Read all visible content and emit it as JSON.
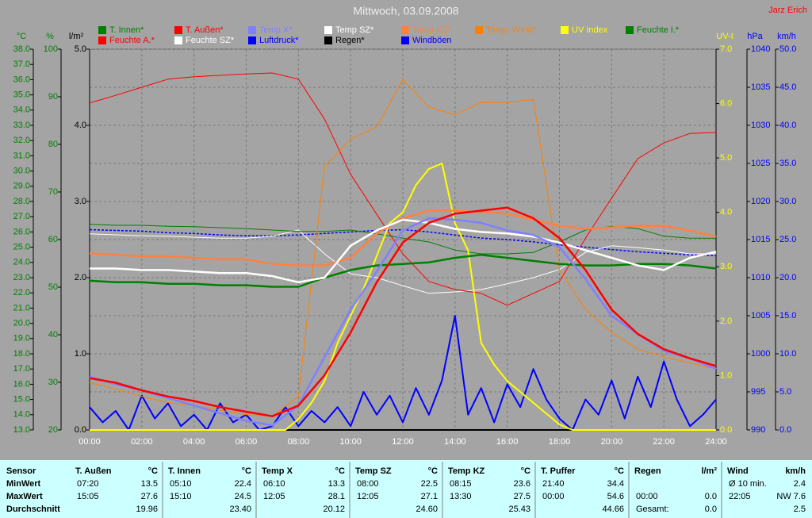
{
  "chart_data": {
    "type": "line",
    "title": "Mittwoch, 03.09.2008",
    "author": "Jarz Erich",
    "x": [
      0,
      1,
      2,
      3,
      4,
      5,
      6,
      7,
      8,
      9,
      10,
      11,
      12,
      13,
      14,
      15,
      16,
      17,
      18,
      19,
      20,
      21,
      22,
      23,
      24
    ],
    "xlim": [
      0,
      24
    ],
    "xticks": [
      {
        "value": 0,
        "label": "00:00"
      },
      {
        "value": 2,
        "label": "02:00"
      },
      {
        "value": 4,
        "label": "04:00"
      },
      {
        "value": 6,
        "label": "06:00"
      },
      {
        "value": 8,
        "label": "08:00"
      },
      {
        "value": 10,
        "label": "10:00"
      },
      {
        "value": 12,
        "label": "12:00"
      },
      {
        "value": 14,
        "label": "14:00"
      },
      {
        "value": 16,
        "label": "16:00"
      },
      {
        "value": 18,
        "label": "18:00"
      },
      {
        "value": 20,
        "label": "20:00"
      },
      {
        "value": 22,
        "label": "22:00"
      },
      {
        "value": 24,
        "label": "24:00"
      }
    ],
    "grid": true,
    "ylabel": "°C",
    "ycolor": "#008000",
    "ylim": [
      13,
      38
    ],
    "yticks": [
      {
        "value": 13,
        "label": "13.0"
      },
      {
        "value": 14,
        "label": "14.0"
      },
      {
        "value": 15,
        "label": "15.0"
      },
      {
        "value": 16,
        "label": "16.0"
      },
      {
        "value": 17,
        "label": "17.0"
      },
      {
        "value": 18,
        "label": "18.0"
      },
      {
        "value": 19,
        "label": "19.0"
      },
      {
        "value": 20,
        "label": "20.0"
      },
      {
        "value": 21,
        "label": "21.0"
      },
      {
        "value": 22,
        "label": "22.0"
      },
      {
        "value": 23,
        "label": "23.0"
      },
      {
        "value": 24,
        "label": "24.0"
      },
      {
        "value": 25,
        "label": "25.0"
      },
      {
        "value": 26,
        "label": "26.0"
      },
      {
        "value": 27,
        "label": "27.0"
      },
      {
        "value": 28,
        "label": "28.0"
      },
      {
        "value": 29,
        "label": "29.0"
      },
      {
        "value": 30,
        "label": "30.0"
      },
      {
        "value": 31,
        "label": "31.0"
      },
      {
        "value": 32,
        "label": "32.0"
      },
      {
        "value": 33,
        "label": "33.0"
      },
      {
        "value": 34,
        "label": "34.0"
      },
      {
        "value": 35,
        "label": "35.0"
      },
      {
        "value": 36,
        "label": "36.0"
      },
      {
        "value": 37,
        "label": "37.0"
      },
      {
        "value": 38,
        "label": "38.0"
      }
    ],
    "y2label": "%",
    "y2color": "#008000",
    "y2lim": [
      20,
      100
    ],
    "y2ticks": [
      20,
      30,
      40,
      50,
      60,
      70,
      80,
      90,
      100
    ],
    "y3label": "l/m²",
    "y3color": "#000000",
    "y3lim": [
      0,
      5
    ],
    "y3ticks": [
      {
        "value": 0,
        "label": "0.0"
      },
      {
        "value": 1,
        "label": "1.0"
      },
      {
        "value": 2,
        "label": "2.0"
      },
      {
        "value": 3,
        "label": "3.0"
      },
      {
        "value": 4,
        "label": "4.0"
      },
      {
        "value": 5,
        "label": "5.0"
      }
    ],
    "y4label": "UV-I",
    "y4color": "#ffff00",
    "y4lim": [
      0,
      7
    ],
    "y4ticks": [
      {
        "value": 0,
        "label": "0.0"
      },
      {
        "value": 1,
        "label": "1.0"
      },
      {
        "value": 2,
        "label": "2.0"
      },
      {
        "value": 3,
        "label": "3.0"
      },
      {
        "value": 4,
        "label": "4.0"
      },
      {
        "value": 5,
        "label": "5.0"
      },
      {
        "value": 6,
        "label": "6.0"
      },
      {
        "value": 7,
        "label": "7.0"
      }
    ],
    "y5label": "hPa",
    "y5color": "#0000ff",
    "y5lim": [
      990,
      1040
    ],
    "y5ticks": [
      990,
      995,
      1000,
      1005,
      1010,
      1015,
      1020,
      1025,
      1030,
      1035,
      1040
    ],
    "y6label": "km/h",
    "y6color": "#0000ff",
    "y6lim": [
      0,
      50
    ],
    "y6ticks": [
      {
        "value": 0,
        "label": "0.0"
      },
      {
        "value": 5,
        "label": "5.0"
      },
      {
        "value": 10,
        "label": "10.0"
      },
      {
        "value": 15,
        "label": "15.0"
      },
      {
        "value": 20,
        "label": "20.0"
      },
      {
        "value": 25,
        "label": "25.0"
      },
      {
        "value": 30,
        "label": "30.0"
      },
      {
        "value": 35,
        "label": "35.0"
      },
      {
        "value": 40,
        "label": "40.0"
      },
      {
        "value": 45,
        "label": "45.0"
      },
      {
        "value": 50,
        "label": "50.0"
      }
    ],
    "series": [
      {
        "name": "T. Innen*",
        "color": "#008000",
        "axis": "y",
        "values": [
          22.8,
          22.7,
          22.7,
          22.6,
          22.6,
          22.5,
          22.5,
          22.4,
          22.4,
          23.0,
          23.5,
          23.8,
          23.9,
          24.0,
          24.3,
          24.5,
          24.3,
          24.1,
          23.9,
          23.8,
          23.8,
          23.9,
          23.9,
          23.8,
          23.6
        ]
      },
      {
        "name": "T. Außen*",
        "color": "#ff0000",
        "axis": "y",
        "values": [
          16.4,
          16.1,
          15.6,
          15.2,
          14.9,
          14.5,
          14.2,
          13.9,
          14.6,
          16.6,
          19.4,
          22.7,
          25.3,
          26.6,
          27.2,
          27.4,
          27.6,
          26.9,
          25.6,
          23.5,
          20.9,
          19.3,
          18.3,
          17.7,
          17.2
        ]
      },
      {
        "name": "Temp X*",
        "color": "#8080ff",
        "axis": "y",
        "values": [
          16.5,
          16.0,
          15.6,
          15.1,
          14.6,
          14.1,
          13.6,
          13.3,
          14.6,
          17.8,
          20.9,
          23.4,
          26.1,
          26.9,
          26.8,
          26.6,
          26.1,
          25.8,
          25.0,
          22.9,
          20.5,
          19.3,
          18.2,
          17.7,
          17.0
        ]
      },
      {
        "name": "Temp SZ*",
        "color": "#ffffff",
        "axis": "y",
        "values": [
          23.6,
          23.6,
          23.5,
          23.5,
          23.4,
          23.3,
          23.3,
          23.1,
          22.7,
          23.0,
          25.1,
          26.1,
          26.8,
          26.6,
          26.2,
          26.0,
          25.9,
          25.7,
          25.3,
          24.8,
          24.3,
          23.8,
          23.5,
          24.3,
          24.7
        ]
      },
      {
        "name": "Temp KZ*",
        "color": "#ff8040",
        "axis": "y",
        "values": [
          24.6,
          24.5,
          24.4,
          24.4,
          24.3,
          24.2,
          24.2,
          23.9,
          23.8,
          23.8,
          24.3,
          25.9,
          26.9,
          27.4,
          27.4,
          27.3,
          27.2,
          26.8,
          26.4,
          26.2,
          26.3,
          26.4,
          26.4,
          26.1,
          25.7
        ]
      },
      {
        "name": "Temp. Wind*",
        "color": "#ff8000",
        "axis": "y",
        "values": [
          16.1,
          15.7,
          15.2,
          14.8,
          14.6,
          14.3,
          14.0,
          13.9,
          15.2,
          30.3,
          32.1,
          32.9,
          36.0,
          34.2,
          33.7,
          34.5,
          34.5,
          34.7,
          23.5,
          20.9,
          19.4,
          18.3,
          17.8,
          17.4,
          17.0
        ]
      },
      {
        "name": "UV Index",
        "color": "#ffff00",
        "axis": "y4",
        "x": [
          0,
          0.5,
          1,
          1.5,
          2,
          2.5,
          3,
          3.5,
          4,
          4.5,
          5,
          5.5,
          6,
          6.5,
          7,
          7.5,
          8,
          8.5,
          9,
          9.5,
          10,
          10.5,
          11,
          11.5,
          12,
          12.5,
          13,
          13.5,
          14,
          14.5,
          15,
          15.5,
          16,
          16.5,
          17,
          17.5,
          18,
          18.5,
          19,
          19.5,
          20,
          20.5,
          21,
          21.5,
          22,
          22.5,
          23,
          23.5,
          24
        ],
        "values": [
          0,
          0,
          0,
          0,
          0,
          0,
          0,
          0,
          0,
          0,
          0,
          0,
          0,
          0,
          0,
          0,
          0.2,
          0.5,
          0.9,
          1.6,
          2.1,
          2.6,
          3.2,
          3.8,
          4.0,
          4.5,
          4.8,
          4.9,
          3.8,
          3.3,
          1.6,
          1.2,
          0.9,
          0.7,
          0.5,
          0.3,
          0.1,
          0,
          0,
          0,
          0,
          0,
          0,
          0,
          0,
          0,
          0,
          0,
          0
        ]
      },
      {
        "name": "Feuchte I.*",
        "color": "#008000",
        "axis": "y2",
        "values": [
          63.2,
          63.0,
          63.0,
          62.8,
          62.7,
          62.5,
          62.3,
          62.0,
          61.7,
          61.7,
          62.0,
          61.2,
          60.3,
          59.5,
          57.8,
          57.0,
          57.0,
          57.3,
          59.5,
          62.0,
          62.8,
          62.3,
          60.7,
          60.3,
          60.3
        ]
      },
      {
        "name": "Feuchte A.*",
        "color": "#ff0000",
        "axis": "y2",
        "values": [
          88.7,
          90.3,
          92.0,
          93.7,
          94.2,
          94.5,
          94.8,
          95.0,
          93.7,
          85.3,
          73.7,
          65.3,
          57.0,
          51.2,
          49.5,
          48.7,
          46.2,
          48.7,
          51.2,
          60.3,
          68.7,
          77.0,
          80.3,
          82.3,
          82.5
        ]
      },
      {
        "name": "Feuchte SZ*",
        "color": "#ffffff",
        "axis": "y2",
        "values": [
          61.2,
          61.0,
          60.8,
          60.7,
          60.5,
          60.3,
          60.3,
          60.7,
          62.0,
          57.0,
          52.8,
          52.0,
          50.3,
          48.7,
          49.0,
          49.5,
          50.7,
          52.0,
          53.7,
          57.3,
          58.7,
          58.3,
          57.8,
          57.0,
          57.0
        ]
      },
      {
        "name": "Luftdruck*",
        "color": "#0000ff",
        "axis": "y5",
        "linestyle": "dashed",
        "values": [
          1016.3,
          1016.2,
          1016.1,
          1015.9,
          1015.8,
          1015.6,
          1015.5,
          1015.5,
          1015.6,
          1015.8,
          1016.0,
          1016.2,
          1016.3,
          1016.0,
          1015.6,
          1015.2,
          1015.0,
          1014.7,
          1014.3,
          1014.0,
          1013.7,
          1013.4,
          1013.2,
          1013.0,
          1012.9
        ]
      },
      {
        "name": "Regen*",
        "color": "#000000",
        "axis": "y3",
        "values": [
          0,
          0,
          0,
          0,
          0,
          0,
          0,
          0,
          0,
          0,
          0,
          0,
          0,
          0,
          0,
          0,
          0,
          0,
          0,
          0,
          0,
          0,
          0,
          0,
          0
        ]
      },
      {
        "name": "Windböen",
        "color": "#0000ff",
        "axis": "y6",
        "x": [
          0,
          0.5,
          1,
          1.5,
          2,
          2.5,
          3,
          3.5,
          4,
          4.5,
          5,
          5.5,
          6,
          6.5,
          7,
          7.5,
          8,
          8.5,
          9,
          9.5,
          10,
          10.5,
          11,
          11.5,
          12,
          12.5,
          13,
          13.5,
          14,
          14.5,
          15,
          15.5,
          16,
          16.5,
          17,
          17.5,
          18,
          18.5,
          19,
          19.5,
          20,
          20.5,
          21,
          21.5,
          22,
          22.5,
          23,
          23.5,
          24
        ],
        "values": [
          3.0,
          1.0,
          2.5,
          0.0,
          4.5,
          1.5,
          3.5,
          0.5,
          2.0,
          0.0,
          3.5,
          1.0,
          2.0,
          0.0,
          0.5,
          3.0,
          0.5,
          2.5,
          1.0,
          3.0,
          0.5,
          5.0,
          2.0,
          4.5,
          1.0,
          5.5,
          2.0,
          6.5,
          15.0,
          2.0,
          5.5,
          1.0,
          6.0,
          3.0,
          8.0,
          4.0,
          1.5,
          0.0,
          4.0,
          2.0,
          6.5,
          1.5,
          7.0,
          3.0,
          9.0,
          4.0,
          0.5,
          2.0,
          4.0
        ]
      }
    ]
  },
  "table": {
    "header": "Sensor",
    "row_labels": [
      "MinWert",
      "MaxWert",
      "Durchschnitt"
    ],
    "columns": [
      {
        "name": "T. Außen",
        "unit": "°C",
        "rows": [
          {
            "time": "07:20",
            "value": "13.5"
          },
          {
            "time": "15:05",
            "value": "27.6"
          },
          {
            "value": "19.96"
          }
        ]
      },
      {
        "name": "T. Innen",
        "unit": "°C",
        "rows": [
          {
            "time": "05:10",
            "value": "22.4"
          },
          {
            "time": "15:10",
            "value": "24.5"
          },
          {
            "value": "23.40"
          }
        ]
      },
      {
        "name": "Temp X",
        "unit": "°C",
        "rows": [
          {
            "time": "06:10",
            "value": "13.3"
          },
          {
            "time": "12:05",
            "value": "28.1"
          },
          {
            "value": "20.12"
          }
        ]
      },
      {
        "name": "Temp SZ",
        "unit": "°C",
        "rows": [
          {
            "time": "08:00",
            "value": "22.5"
          },
          {
            "time": "12:05",
            "value": "27.1"
          },
          {
            "value": "24.60"
          }
        ]
      },
      {
        "name": "Temp KZ",
        "unit": "°C",
        "rows": [
          {
            "time": "08:15",
            "value": "23.6"
          },
          {
            "time": "13:30",
            "value": "27.5"
          },
          {
            "value": "25.43"
          }
        ]
      },
      {
        "name": "T. Puffer",
        "unit": "°C",
        "rows": [
          {
            "time": "21:40",
            "value": "34.4"
          },
          {
            "time": "00:00",
            "value": "54.6"
          },
          {
            "value": "44.66"
          }
        ]
      },
      {
        "name": "Regen",
        "unit": "l/m²",
        "rows": [
          {},
          {
            "time": "00:00",
            "value": "0.0"
          },
          {
            "time": "Gesamt:",
            "value": "0.0"
          }
        ]
      },
      {
        "name": "Wind",
        "unit": "km/h",
        "rows": [
          {
            "time": "Ø 10 min.",
            "value": "2.4"
          },
          {
            "time": "22:05",
            "value": "NW 7.6"
          },
          {
            "value": "2.5"
          }
        ]
      }
    ]
  }
}
